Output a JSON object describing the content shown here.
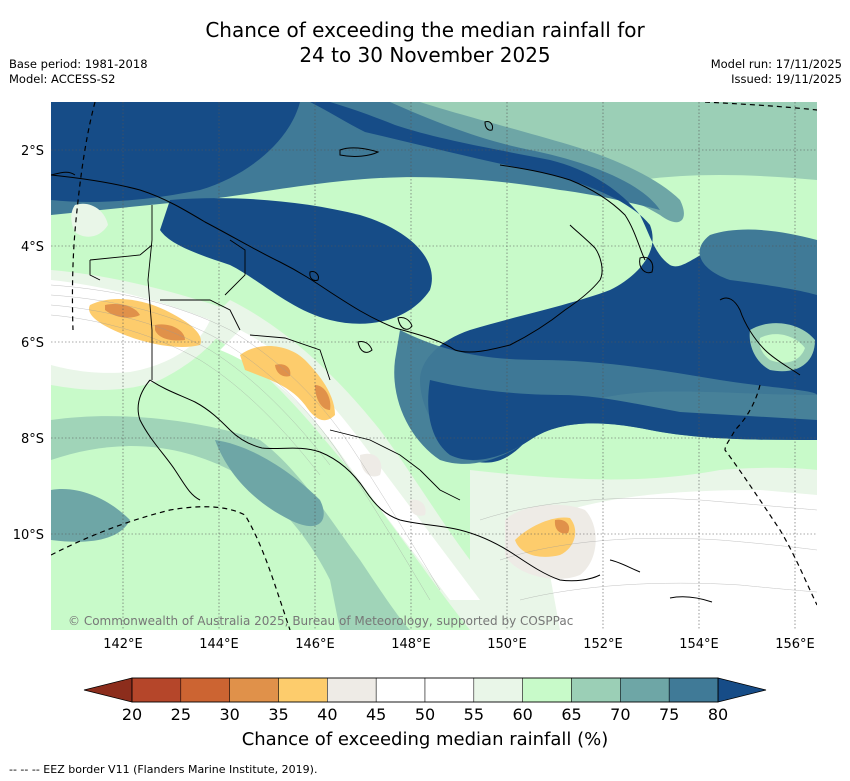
{
  "title": {
    "line1": "Chance of exceeding the median rainfall for",
    "line2": "24 to 30 November 2025"
  },
  "meta": {
    "base_period": "Base period: 1981-2018",
    "model": "Model: ACCESS-S2",
    "model_run": "Model run: 17/11/2025",
    "issued": "Issued: 19/11/2025"
  },
  "map": {
    "lat_labels": [
      "2°S",
      "4°S",
      "6°S",
      "8°S",
      "10°S"
    ],
    "lon_labels": [
      "142°E",
      "144°E",
      "146°E",
      "148°E",
      "150°E",
      "152°E",
      "154°E",
      "156°E"
    ],
    "copyright": "© Commonwealth of Australia 2025, Bureau of Meteorology, supported by COSPPac"
  },
  "colorbar": {
    "ticks": [
      "20",
      "25",
      "30",
      "35",
      "40",
      "45",
      "50",
      "55",
      "60",
      "65",
      "70",
      "75",
      "80"
    ],
    "colors": [
      "#b5462a",
      "#cc6432",
      "#e0914a",
      "#fdcc6c",
      "#eeebe6",
      "#ffffff",
      "#ffffff",
      "#e9f6e8",
      "#c8fac9",
      "#9bcfb6",
      "#6ea6a6",
      "#407a97"
    ],
    "low_extend": "#8c2d1c",
    "high_extend": "#164c87",
    "label": "Chance of exceeding median rainfall (%)"
  },
  "footnote": "-- -- -- EEZ border V11 (Flanders Marine Institute, 2019)."
}
